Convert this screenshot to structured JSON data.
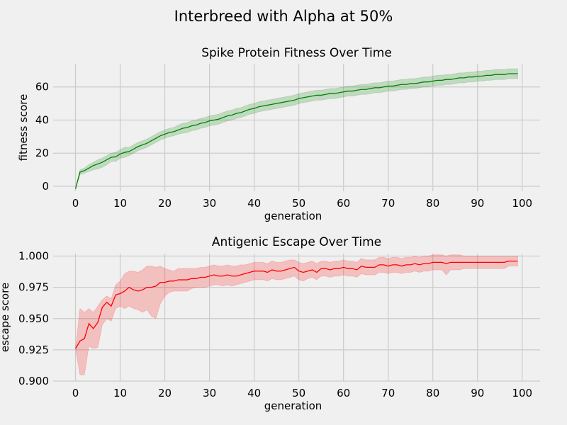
{
  "figure": {
    "suptitle": "Interbreed with Alpha at 50%",
    "background": "#f0f0f0"
  },
  "chart_data": [
    {
      "type": "line",
      "title": "Spike Protein Fitness Over Time",
      "xlabel": "generation",
      "ylabel": "fitness score",
      "xlim": [
        -5,
        104
      ],
      "ylim": [
        -3,
        74
      ],
      "xticks": [
        0,
        10,
        20,
        30,
        40,
        50,
        60,
        70,
        80,
        90,
        100
      ],
      "yticks": [
        0,
        20,
        40,
        60
      ],
      "ytick_labels": [
        "0",
        "20",
        "40",
        "60"
      ],
      "grid": true,
      "line_color": "#008000",
      "band_color": "#008000",
      "band_opacity": 0.2,
      "series": [
        {
          "x": [
            0,
            1,
            2,
            3,
            4,
            5,
            6,
            7,
            8,
            9,
            10,
            11,
            12,
            13,
            14,
            15,
            16,
            17,
            18,
            19,
            20,
            21,
            22,
            23,
            24,
            25,
            26,
            27,
            28,
            29,
            30,
            31,
            32,
            33,
            34,
            35,
            36,
            37,
            38,
            39,
            40,
            41,
            42,
            43,
            44,
            45,
            46,
            47,
            48,
            49,
            50,
            51,
            52,
            53,
            54,
            55,
            56,
            57,
            58,
            59,
            60,
            61,
            62,
            63,
            64,
            65,
            66,
            67,
            68,
            69,
            70,
            71,
            72,
            73,
            74,
            75,
            76,
            77,
            78,
            79,
            80,
            81,
            82,
            83,
            84,
            85,
            86,
            87,
            88,
            89,
            90,
            91,
            92,
            93,
            94,
            95,
            96,
            97,
            98,
            99
          ],
          "y": [
            -1.5,
            8.5,
            9.5,
            11,
            12.5,
            13.5,
            14.5,
            16,
            17.5,
            17.8,
            19.5,
            20.5,
            21,
            22.5,
            24,
            25,
            26,
            27.5,
            29,
            30.5,
            31.5,
            32.5,
            33,
            34,
            35,
            35.5,
            36.5,
            37,
            38,
            38.5,
            39.5,
            40,
            40.5,
            41.5,
            42.5,
            43,
            44,
            44.5,
            45.5,
            46.5,
            47,
            48,
            48.5,
            49,
            49.5,
            50,
            50.5,
            51,
            51.5,
            52,
            53,
            53.5,
            54,
            54.5,
            55,
            55,
            55.5,
            56,
            56,
            56.5,
            57,
            57.5,
            57.5,
            58,
            58.5,
            58.5,
            59,
            59.5,
            59.5,
            60,
            60.5,
            60.5,
            61,
            61.5,
            61.5,
            62,
            62,
            62.5,
            63,
            63,
            63.5,
            64,
            64,
            64.5,
            64.5,
            65,
            65.5,
            65.5,
            66,
            66,
            66.5,
            66.5,
            67,
            67,
            67.5,
            67.5,
            67.5,
            68,
            68,
            68
          ],
          "lower": [
            -1.5,
            7,
            8,
            9,
            10,
            10.5,
            11.5,
            13,
            15,
            15,
            17,
            17.5,
            18.5,
            20,
            21.5,
            22.5,
            23.5,
            25,
            26.5,
            28,
            29,
            30,
            30.5,
            31.5,
            32,
            32.5,
            33.5,
            34,
            35,
            35.5,
            36.5,
            37,
            37.5,
            38.5,
            39.5,
            40,
            41,
            41.5,
            42.5,
            43.5,
            44,
            45,
            45.5,
            46,
            46.5,
            47,
            47.5,
            48,
            48.5,
            49,
            50,
            50.5,
            51,
            51.5,
            52,
            52,
            52.5,
            53,
            53,
            53.5,
            54,
            54.5,
            54.5,
            55,
            55.5,
            55.5,
            56,
            56.5,
            56.5,
            57,
            57.5,
            57.5,
            58,
            58.5,
            58.5,
            59,
            59,
            59.5,
            60,
            60,
            60.5,
            61,
            61,
            61.5,
            61.5,
            62,
            62.5,
            62.5,
            63,
            63,
            63.5,
            63.5,
            64,
            64,
            64.5,
            64.5,
            64.5,
            65,
            65,
            65
          ],
          "upper": [
            -1.5,
            10,
            11,
            13,
            14.5,
            16,
            17,
            18.5,
            20,
            20.5,
            22,
            23.5,
            23.5,
            25,
            26.5,
            27.5,
            28.5,
            30,
            31.5,
            33,
            34,
            35,
            35.5,
            37,
            38,
            38.5,
            39.5,
            40,
            41,
            41.5,
            42.5,
            43,
            43.5,
            44.5,
            45.5,
            46,
            47,
            47.5,
            48.5,
            49.5,
            50,
            51,
            51.5,
            52,
            52.5,
            53,
            53.5,
            54,
            54.5,
            55,
            56,
            56.5,
            57,
            57.5,
            58,
            58,
            58.5,
            59,
            59,
            59.5,
            60,
            60.5,
            60.5,
            61,
            61.5,
            61.5,
            62,
            62.5,
            62.5,
            63,
            63.5,
            63.5,
            64,
            64.5,
            64.5,
            65,
            65,
            65.5,
            66,
            66,
            66.5,
            67,
            67,
            67.5,
            67.5,
            68,
            68.5,
            68.5,
            69,
            69,
            69.5,
            69.5,
            70,
            70,
            70.5,
            70.5,
            70.5,
            71,
            71,
            71
          ]
        }
      ]
    },
    {
      "type": "line",
      "title": "Antigenic Escape Over Time",
      "xlabel": "generation",
      "ylabel": "escape score",
      "xlim": [
        -5,
        104
      ],
      "ylim": [
        0.9,
        1.002
      ],
      "xticks": [
        0,
        10,
        20,
        30,
        40,
        50,
        60,
        70,
        80,
        90,
        100
      ],
      "yticks": [
        0.9,
        0.925,
        0.95,
        0.975,
        1.0
      ],
      "ytick_labels": [
        "0.900",
        "0.925",
        "0.950",
        "0.975",
        "1.000"
      ],
      "grid": true,
      "line_color": "#ff0000",
      "band_color": "#ff0000",
      "band_opacity": 0.2,
      "series": [
        {
          "x": [
            0,
            1,
            2,
            3,
            4,
            5,
            6,
            7,
            8,
            9,
            10,
            11,
            12,
            13,
            14,
            15,
            16,
            17,
            18,
            19,
            20,
            21,
            22,
            23,
            24,
            25,
            26,
            27,
            28,
            29,
            30,
            31,
            32,
            33,
            34,
            35,
            36,
            37,
            38,
            39,
            40,
            41,
            42,
            43,
            44,
            45,
            46,
            47,
            48,
            49,
            50,
            51,
            52,
            53,
            54,
            55,
            56,
            57,
            58,
            59,
            60,
            61,
            62,
            63,
            64,
            65,
            66,
            67,
            68,
            69,
            70,
            71,
            72,
            73,
            74,
            75,
            76,
            77,
            78,
            79,
            80,
            81,
            82,
            83,
            84,
            85,
            86,
            87,
            88,
            89,
            90,
            91,
            92,
            93,
            94,
            95,
            96,
            97,
            98,
            99
          ],
          "y": [
            0.926,
            0.932,
            0.934,
            0.946,
            0.942,
            0.947,
            0.959,
            0.963,
            0.96,
            0.969,
            0.97,
            0.972,
            0.975,
            0.973,
            0.972,
            0.973,
            0.975,
            0.975,
            0.976,
            0.979,
            0.979,
            0.98,
            0.98,
            0.981,
            0.981,
            0.981,
            0.982,
            0.982,
            0.983,
            0.983,
            0.984,
            0.985,
            0.984,
            0.984,
            0.985,
            0.984,
            0.984,
            0.985,
            0.986,
            0.987,
            0.988,
            0.988,
            0.988,
            0.987,
            0.989,
            0.988,
            0.988,
            0.989,
            0.99,
            0.991,
            0.988,
            0.987,
            0.988,
            0.989,
            0.987,
            0.99,
            0.99,
            0.989,
            0.99,
            0.99,
            0.991,
            0.99,
            0.99,
            0.989,
            0.992,
            0.991,
            0.991,
            0.991,
            0.993,
            0.993,
            0.992,
            0.993,
            0.993,
            0.992,
            0.993,
            0.993,
            0.994,
            0.993,
            0.994,
            0.994,
            0.995,
            0.995,
            0.995,
            0.994,
            0.995,
            0.995,
            0.995,
            0.995,
            0.995,
            0.995,
            0.995,
            0.995,
            0.995,
            0.995,
            0.995,
            0.995,
            0.995,
            0.996,
            0.996,
            0.996
          ],
          "lower": [
            0.926,
            0.905,
            0.905,
            0.928,
            0.926,
            0.927,
            0.945,
            0.95,
            0.948,
            0.958,
            0.96,
            0.958,
            0.96,
            0.958,
            0.957,
            0.955,
            0.957,
            0.952,
            0.95,
            0.962,
            0.968,
            0.971,
            0.972,
            0.972,
            0.972,
            0.972,
            0.974,
            0.975,
            0.975,
            0.975,
            0.976,
            0.977,
            0.977,
            0.976,
            0.977,
            0.976,
            0.977,
            0.978,
            0.979,
            0.98,
            0.981,
            0.981,
            0.981,
            0.98,
            0.982,
            0.981,
            0.981,
            0.982,
            0.983,
            0.984,
            0.981,
            0.98,
            0.982,
            0.983,
            0.981,
            0.984,
            0.984,
            0.983,
            0.984,
            0.984,
            0.985,
            0.984,
            0.984,
            0.983,
            0.986,
            0.985,
            0.985,
            0.985,
            0.987,
            0.987,
            0.986,
            0.987,
            0.987,
            0.986,
            0.987,
            0.987,
            0.988,
            0.987,
            0.988,
            0.988,
            0.989,
            0.989,
            0.989,
            0.985,
            0.989,
            0.989,
            0.989,
            0.99,
            0.99,
            0.99,
            0.99,
            0.99,
            0.99,
            0.99,
            0.99,
            0.99,
            0.99,
            0.992,
            0.992,
            0.992
          ],
          "upper": [
            0.926,
            0.958,
            0.955,
            0.958,
            0.955,
            0.96,
            0.965,
            0.968,
            0.966,
            0.977,
            0.98,
            0.986,
            0.988,
            0.988,
            0.987,
            0.989,
            0.992,
            0.992,
            0.991,
            0.992,
            0.99,
            0.989,
            0.988,
            0.99,
            0.99,
            0.99,
            0.99,
            0.99,
            0.991,
            0.991,
            0.992,
            0.993,
            0.992,
            0.992,
            0.993,
            0.992,
            0.992,
            0.993,
            0.993,
            0.994,
            0.995,
            0.995,
            0.995,
            0.994,
            0.996,
            0.995,
            0.995,
            0.996,
            0.997,
            0.997,
            0.995,
            0.994,
            0.995,
            0.996,
            0.994,
            0.996,
            0.996,
            0.995,
            0.996,
            0.996,
            0.997,
            0.996,
            0.996,
            0.995,
            0.998,
            0.997,
            0.997,
            0.997,
            0.999,
            0.999,
            0.998,
            0.999,
            0.999,
            0.998,
            0.999,
            0.999,
            1.0,
            0.999,
            1.0,
            1.0,
            1.001,
            1.001,
            1.001,
            1.0,
            1.001,
            1.001,
            1.001,
            1.0,
            1.0,
            1.0,
            1.0,
            1.0,
            1.0,
            1.0,
            1.0,
            1.0,
            1.0,
            1.0,
            1.0,
            1.0
          ]
        }
      ]
    }
  ]
}
